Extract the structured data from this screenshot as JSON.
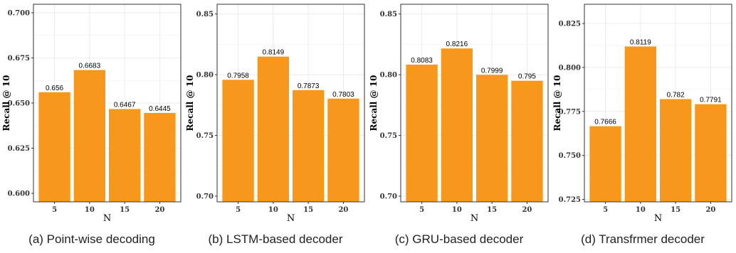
{
  "colors": {
    "bar": "#F7981D",
    "grid": "#EBEBEB",
    "border": "#333333"
  },
  "chart_data": [
    {
      "type": "bar",
      "caption": "(a) Point-wise decoding",
      "xlabel": "N",
      "ylabel": "Recall @ 10",
      "categories": [
        "5",
        "10",
        "15",
        "20"
      ],
      "values": [
        0.656,
        0.6683,
        0.6467,
        0.6445
      ],
      "value_labels": [
        "0.656",
        "0.6683",
        "0.6467",
        "0.6445"
      ],
      "ylim": [
        0.5953,
        0.7047
      ],
      "yticks": [
        0.6,
        0.625,
        0.65,
        0.675,
        0.7
      ],
      "ytick_labels": [
        "0.600",
        "0.625",
        "0.650",
        "0.675",
        "0.700"
      ],
      "grid": true
    },
    {
      "type": "bar",
      "caption": "(b) LSTM-based decoder",
      "xlabel": "N",
      "ylabel": "Recall @ 10",
      "categories": [
        "5",
        "10",
        "15",
        "20"
      ],
      "values": [
        0.7958,
        0.8149,
        0.7873,
        0.7803
      ],
      "value_labels": [
        "0.7958",
        "0.8149",
        "0.7873",
        "0.7803"
      ],
      "ylim": [
        0.6953,
        0.858
      ],
      "yticks": [
        0.7,
        0.75,
        0.8,
        0.85
      ],
      "ytick_labels": [
        "0.70",
        "0.75",
        "0.80",
        "0.85"
      ],
      "grid": true
    },
    {
      "type": "bar",
      "caption": "(c) GRU-based decoder",
      "xlabel": "N",
      "ylabel": "Recall @ 10",
      "categories": [
        "5",
        "10",
        "15",
        "20"
      ],
      "values": [
        0.8083,
        0.8216,
        0.7999,
        0.795
      ],
      "value_labels": [
        "0.8083",
        "0.8216",
        "0.7999",
        "0.795"
      ],
      "ylim": [
        0.6953,
        0.858
      ],
      "yticks": [
        0.7,
        0.75,
        0.8,
        0.85
      ],
      "ytick_labels": [
        "0.70",
        "0.75",
        "0.80",
        "0.85"
      ],
      "grid": true
    },
    {
      "type": "bar",
      "caption": "(d) Transfrmer decoder",
      "xlabel": "N",
      "ylabel": "Recall @ 10",
      "categories": [
        "5",
        "10",
        "15",
        "20"
      ],
      "values": [
        0.7666,
        0.8119,
        0.782,
        0.7791
      ],
      "value_labels": [
        "0.7666",
        "0.8119",
        "0.782",
        "0.7791"
      ],
      "ylim": [
        0.7236,
        0.8359
      ],
      "yticks": [
        0.725,
        0.75,
        0.775,
        0.8,
        0.825
      ],
      "ytick_labels": [
        "0.725",
        "0.750",
        "0.775",
        "0.800",
        "0.825"
      ],
      "grid": true
    }
  ]
}
